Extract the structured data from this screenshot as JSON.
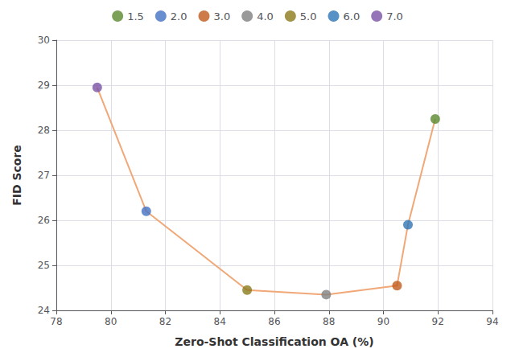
{
  "chart_data": {
    "type": "line",
    "xlabel": "Zero-Shot Classification OA (%)",
    "ylabel": "FID Score",
    "xlim": [
      78,
      94
    ],
    "ylim": [
      24,
      30
    ],
    "xticks": [
      78,
      80,
      82,
      84,
      86,
      88,
      90,
      92,
      94
    ],
    "yticks": [
      24,
      25,
      26,
      27,
      28,
      29,
      30
    ],
    "grid": true,
    "legend": "top",
    "series": [
      {
        "type": "line",
        "color": "#f0a878",
        "x": [
          79.5,
          81.3,
          85.0,
          87.9,
          90.5,
          90.9,
          91.9
        ],
        "values": [
          28.95,
          26.2,
          24.45,
          24.35,
          24.55,
          25.9,
          28.25
        ]
      },
      {
        "name": "1.5",
        "type": "scatter",
        "marker": "circle",
        "color": "#5a8a30",
        "x": [
          91.9
        ],
        "values": [
          28.25
        ]
      },
      {
        "name": "2.0",
        "type": "scatter",
        "marker": "circle",
        "color": "#4472c4",
        "x": [
          81.3
        ],
        "values": [
          26.2
        ]
      },
      {
        "name": "3.0",
        "type": "scatter",
        "marker": "circle",
        "color": "#c05a1a",
        "x": [
          90.5
        ],
        "values": [
          24.55
        ]
      },
      {
        "name": "4.0",
        "type": "scatter",
        "marker": "circle",
        "color": "#7f7f7f",
        "x": [
          87.9
        ],
        "values": [
          24.35
        ]
      },
      {
        "name": "5.0",
        "type": "scatter",
        "marker": "circle",
        "color": "#8b7a1a",
        "x": [
          85.0
        ],
        "values": [
          24.45
        ]
      },
      {
        "name": "6.0",
        "type": "scatter",
        "marker": "circle",
        "color": "#2e75b6",
        "x": [
          90.9
        ],
        "values": [
          25.9
        ]
      },
      {
        "name": "7.0",
        "type": "scatter",
        "marker": "circle",
        "color": "#7b52a6",
        "x": [
          79.5
        ],
        "values": [
          28.95
        ]
      }
    ]
  }
}
